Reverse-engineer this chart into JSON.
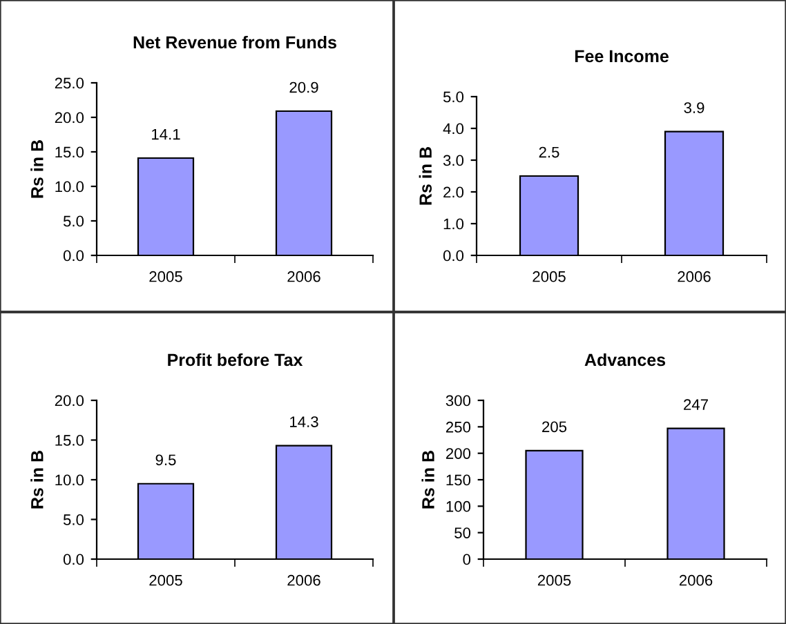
{
  "chart_data": [
    {
      "type": "bar",
      "title": "Net Revenue from Funds",
      "ylabel": "Rs in B",
      "categories": [
        "2005",
        "2006"
      ],
      "values": [
        14.1,
        20.9
      ],
      "color": "#9999ff",
      "ylim": [
        0,
        25
      ],
      "yticks": [
        {
          "value": 0,
          "label": "0.0"
        },
        {
          "value": 5,
          "label": "5.0"
        },
        {
          "value": 10,
          "label": "10.0"
        },
        {
          "value": 15,
          "label": "15.0"
        },
        {
          "value": 20,
          "label": "20.0"
        },
        {
          "value": 25,
          "label": "25.0"
        }
      ],
      "data_labels": true,
      "grid": false
    },
    {
      "type": "bar",
      "title": "Fee Income",
      "ylabel": "Rs in B",
      "categories": [
        "2005",
        "2006"
      ],
      "values": [
        2.5,
        3.9
      ],
      "color": "#9999ff",
      "ylim": [
        0,
        5
      ],
      "yticks": [
        {
          "value": 0,
          "label": "0.0"
        },
        {
          "value": 1,
          "label": "1.0"
        },
        {
          "value": 2,
          "label": "2.0"
        },
        {
          "value": 3,
          "label": "3.0"
        },
        {
          "value": 4,
          "label": "4.0"
        },
        {
          "value": 5,
          "label": "5.0"
        }
      ],
      "data_labels": true,
      "grid": false
    },
    {
      "type": "bar",
      "title": "Profit before Tax",
      "ylabel": "Rs in B",
      "categories": [
        "2005",
        "2006"
      ],
      "values": [
        9.5,
        14.3
      ],
      "color": "#9999ff",
      "ylim": [
        0,
        20
      ],
      "yticks": [
        {
          "value": 0,
          "label": "0.0"
        },
        {
          "value": 5,
          "label": "5.0"
        },
        {
          "value": 10,
          "label": "10.0"
        },
        {
          "value": 15,
          "label": "15.0"
        },
        {
          "value": 20,
          "label": "20.0"
        }
      ],
      "data_labels": true,
      "grid": false
    },
    {
      "type": "bar",
      "title": "Advances",
      "ylabel": "Rs in B",
      "categories": [
        "2005",
        "2006"
      ],
      "values": [
        205,
        247
      ],
      "color": "#9999ff",
      "ylim": [
        0,
        300
      ],
      "yticks": [
        0,
        50,
        100,
        150,
        200,
        250,
        300
      ],
      "data_labels": true,
      "grid": false
    }
  ]
}
